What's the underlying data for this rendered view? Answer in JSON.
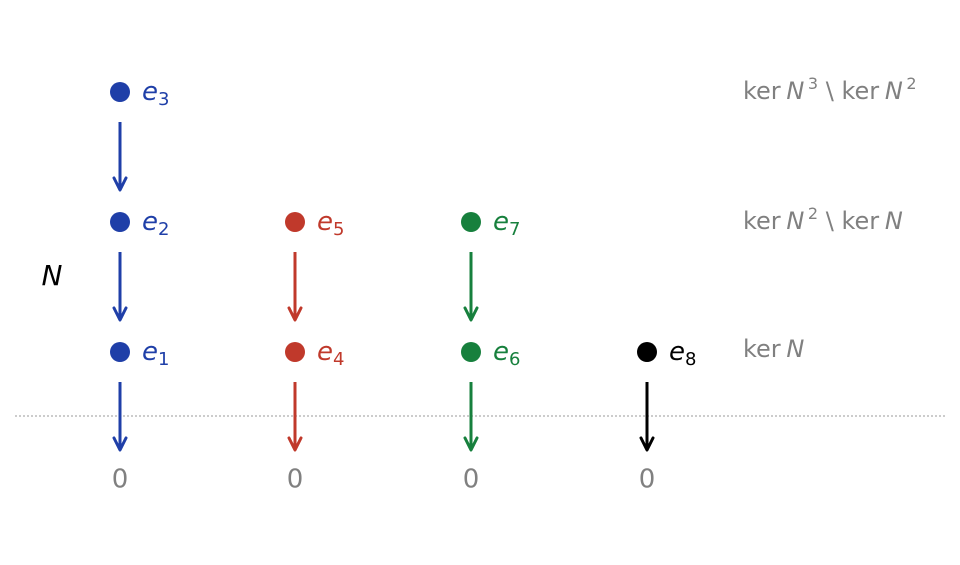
{
  "axis_label": "N",
  "chains": [
    {
      "color": "#1f3fa8",
      "nodes": [
        {
          "letter": "e",
          "index": 3
        },
        {
          "letter": "e",
          "index": 2
        },
        {
          "letter": "e",
          "index": 1
        }
      ],
      "zero": 0
    },
    {
      "color": "#c0392b",
      "nodes": [
        {
          "letter": "e",
          "index": 5
        },
        {
          "letter": "e",
          "index": 4
        }
      ],
      "zero": 0
    },
    {
      "color": "#17803d",
      "nodes": [
        {
          "letter": "e",
          "index": 7
        },
        {
          "letter": "e",
          "index": 6
        }
      ],
      "zero": 0
    },
    {
      "color": "#000000",
      "nodes": [
        {
          "letter": "e",
          "index": 8
        }
      ],
      "zero": 0
    }
  ],
  "levels": [
    {
      "parts": [
        "ker",
        "N",
        "3",
        "\\",
        "ker",
        "N",
        "2"
      ]
    },
    {
      "parts": [
        "ker",
        "N",
        "2",
        "\\",
        "ker",
        "N"
      ]
    },
    {
      "parts": [
        "ker",
        "N"
      ]
    }
  ]
}
